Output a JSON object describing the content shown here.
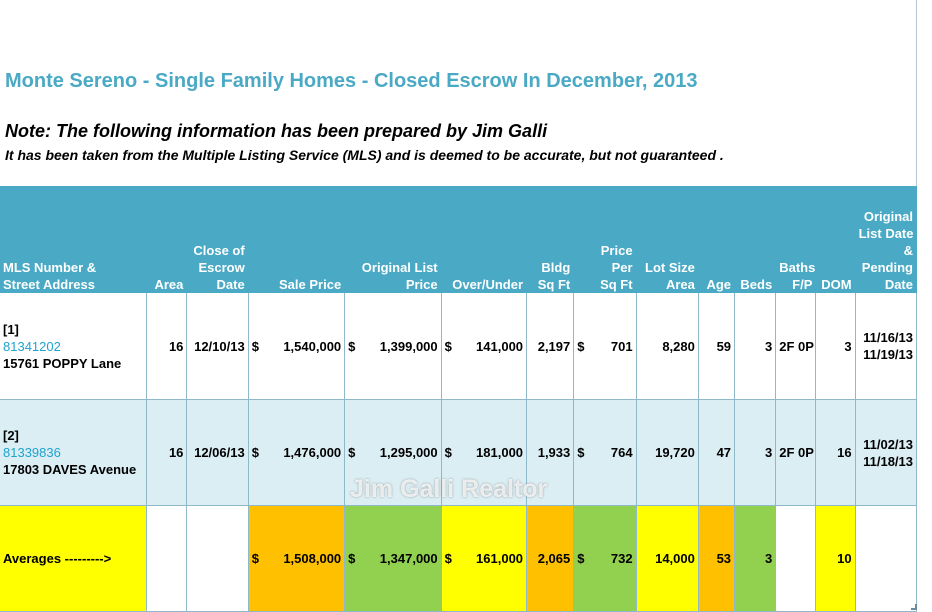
{
  "title": "Monte Sereno - Single Family Homes - Closed Escrow In December, 2013",
  "note": "Note:  The following information has been prepared by Jim Galli",
  "disclaimer": "It has been taken from the Multiple Listing Service (MLS) and is deemed to be accurate, but not guaranteed",
  "disclaimer_end": ".",
  "watermark": "Jim Galli Realtor",
  "columns": {
    "mls_address": [
      "MLS Number &",
      "Street Address"
    ],
    "area": "Area",
    "close_date": [
      "Close of",
      "Escrow",
      "Date"
    ],
    "sale_price": "Sale Price",
    "orig_list_price": [
      "Original List",
      "Price"
    ],
    "over_under": "Over/Under",
    "bldg_sqft": [
      "Bldg",
      "Sq Ft"
    ],
    "price_per_sqft": [
      "Price",
      "Per",
      "Sq Ft"
    ],
    "lot_size": [
      "Lot Size",
      "Area"
    ],
    "age": "Age",
    "beds": "Beds",
    "baths": [
      "Baths",
      "F/P"
    ],
    "dom": "DOM",
    "orig_list_pending": [
      "Original",
      "List Date",
      "&",
      "Pending",
      "Date"
    ]
  },
  "currency_symbol": "$",
  "rows": [
    {
      "index": "[1]",
      "mls": "81341202",
      "address": "15761 POPPY Lane",
      "area": "16",
      "close_date": "12/10/13",
      "sale_price": "1,540,000",
      "orig_list_price": "1,399,000",
      "over_under": "141,000",
      "bldg_sqft": "2,197",
      "price_per_sqft": "701",
      "lot_size": "8,280",
      "age": "59",
      "beds": "3",
      "baths": "2F 0P",
      "dom": "3",
      "list_date": "11/16/13",
      "pending_date": "11/19/13"
    },
    {
      "index": "[2]",
      "mls": "81339836",
      "address": "17803 DAVES Avenue",
      "area": "16",
      "close_date": "12/06/13",
      "sale_price": "1,476,000",
      "orig_list_price": "1,295,000",
      "over_under": "181,000",
      "bldg_sqft": "1,933",
      "price_per_sqft": "764",
      "lot_size": "19,720",
      "age": "47",
      "beds": "3",
      "baths": "2F 0P",
      "dom": "16",
      "list_date": "11/02/13",
      "pending_date": "11/18/13"
    }
  ],
  "averages": {
    "label": "Averages --------->",
    "sale_price": "1,508,000",
    "orig_list_price": "1,347,000",
    "over_under": "161,000",
    "bldg_sqft": "2,065",
    "price_per_sqft": "732",
    "lot_size": "14,000",
    "age": "53",
    "beds": "3",
    "dom": "10"
  },
  "colors": {
    "header_bg": "#4aaac6",
    "title": "#4aa9c4",
    "row_alt": "#dbeef4",
    "yellow": "#ffff00",
    "orange": "#ffc000",
    "green": "#92d050"
  }
}
